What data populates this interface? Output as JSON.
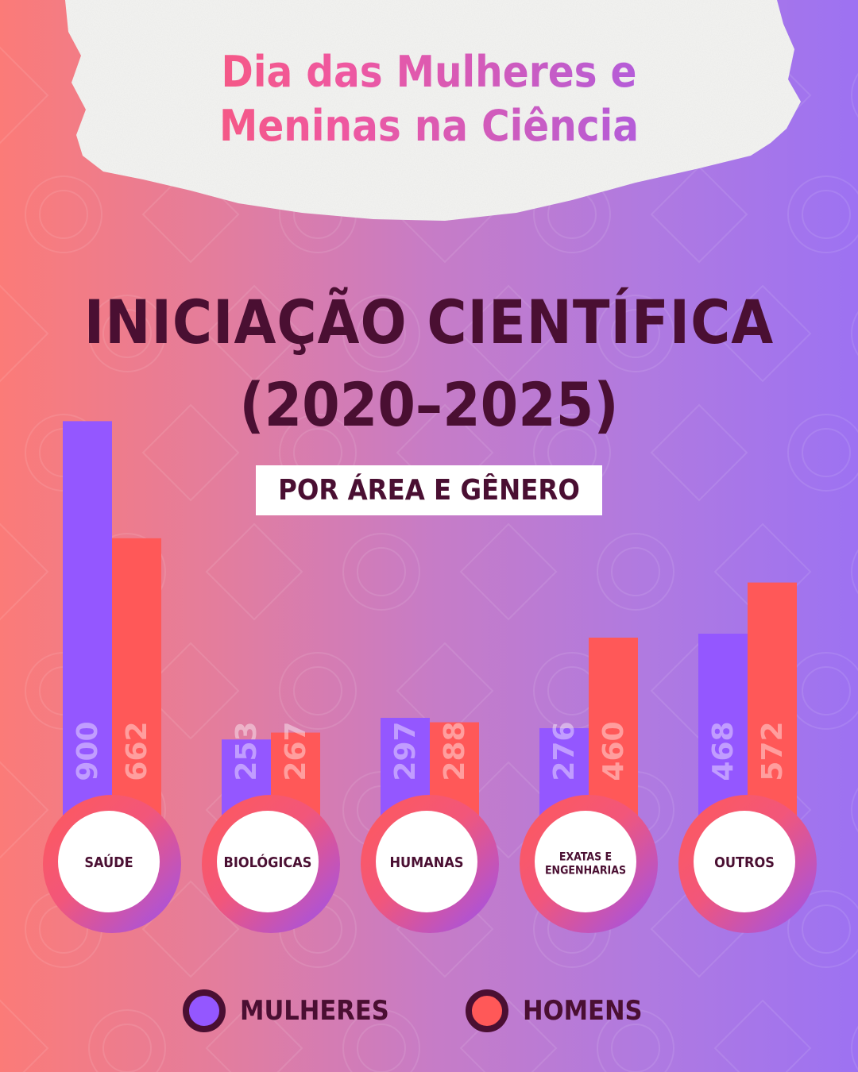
{
  "header": {
    "title_line1": "Dia das Mulheres e",
    "title_line2": "Meninas na Ciência"
  },
  "headline": {
    "line1": "INICIAÇÃO CIENTÍFICA",
    "line2": "(2020–2025)"
  },
  "subtitle": "POR ÁREA E GÊNERO",
  "colors": {
    "mulheres": "#9457ff",
    "homens": "#ff5858",
    "text_dark": "#4a0f32"
  },
  "chart_data": {
    "type": "bar",
    "title": "INICIAÇÃO CIENTÍFICA (2020–2025)",
    "subtitle": "POR ÁREA E GÊNERO",
    "categories": [
      "SAÚDE",
      "BIOLÓGICAS",
      "HUMANAS",
      "EXATAS E ENGENHARIAS",
      "OUTROS"
    ],
    "category_lines": [
      [
        "SAÚDE"
      ],
      [
        "BIOLÓGICAS"
      ],
      [
        "HUMANAS"
      ],
      [
        "EXATAS E",
        "ENGENHARIAS"
      ],
      [
        "OUTROS"
      ]
    ],
    "series": [
      {
        "name": "MULHERES",
        "values": [
          900,
          253,
          297,
          276,
          468
        ]
      },
      {
        "name": "HOMENS",
        "values": [
          662,
          267,
          288,
          460,
          572
        ]
      }
    ],
    "ylim": [
      0,
      1000
    ],
    "grid": false,
    "legend": "bottom"
  }
}
